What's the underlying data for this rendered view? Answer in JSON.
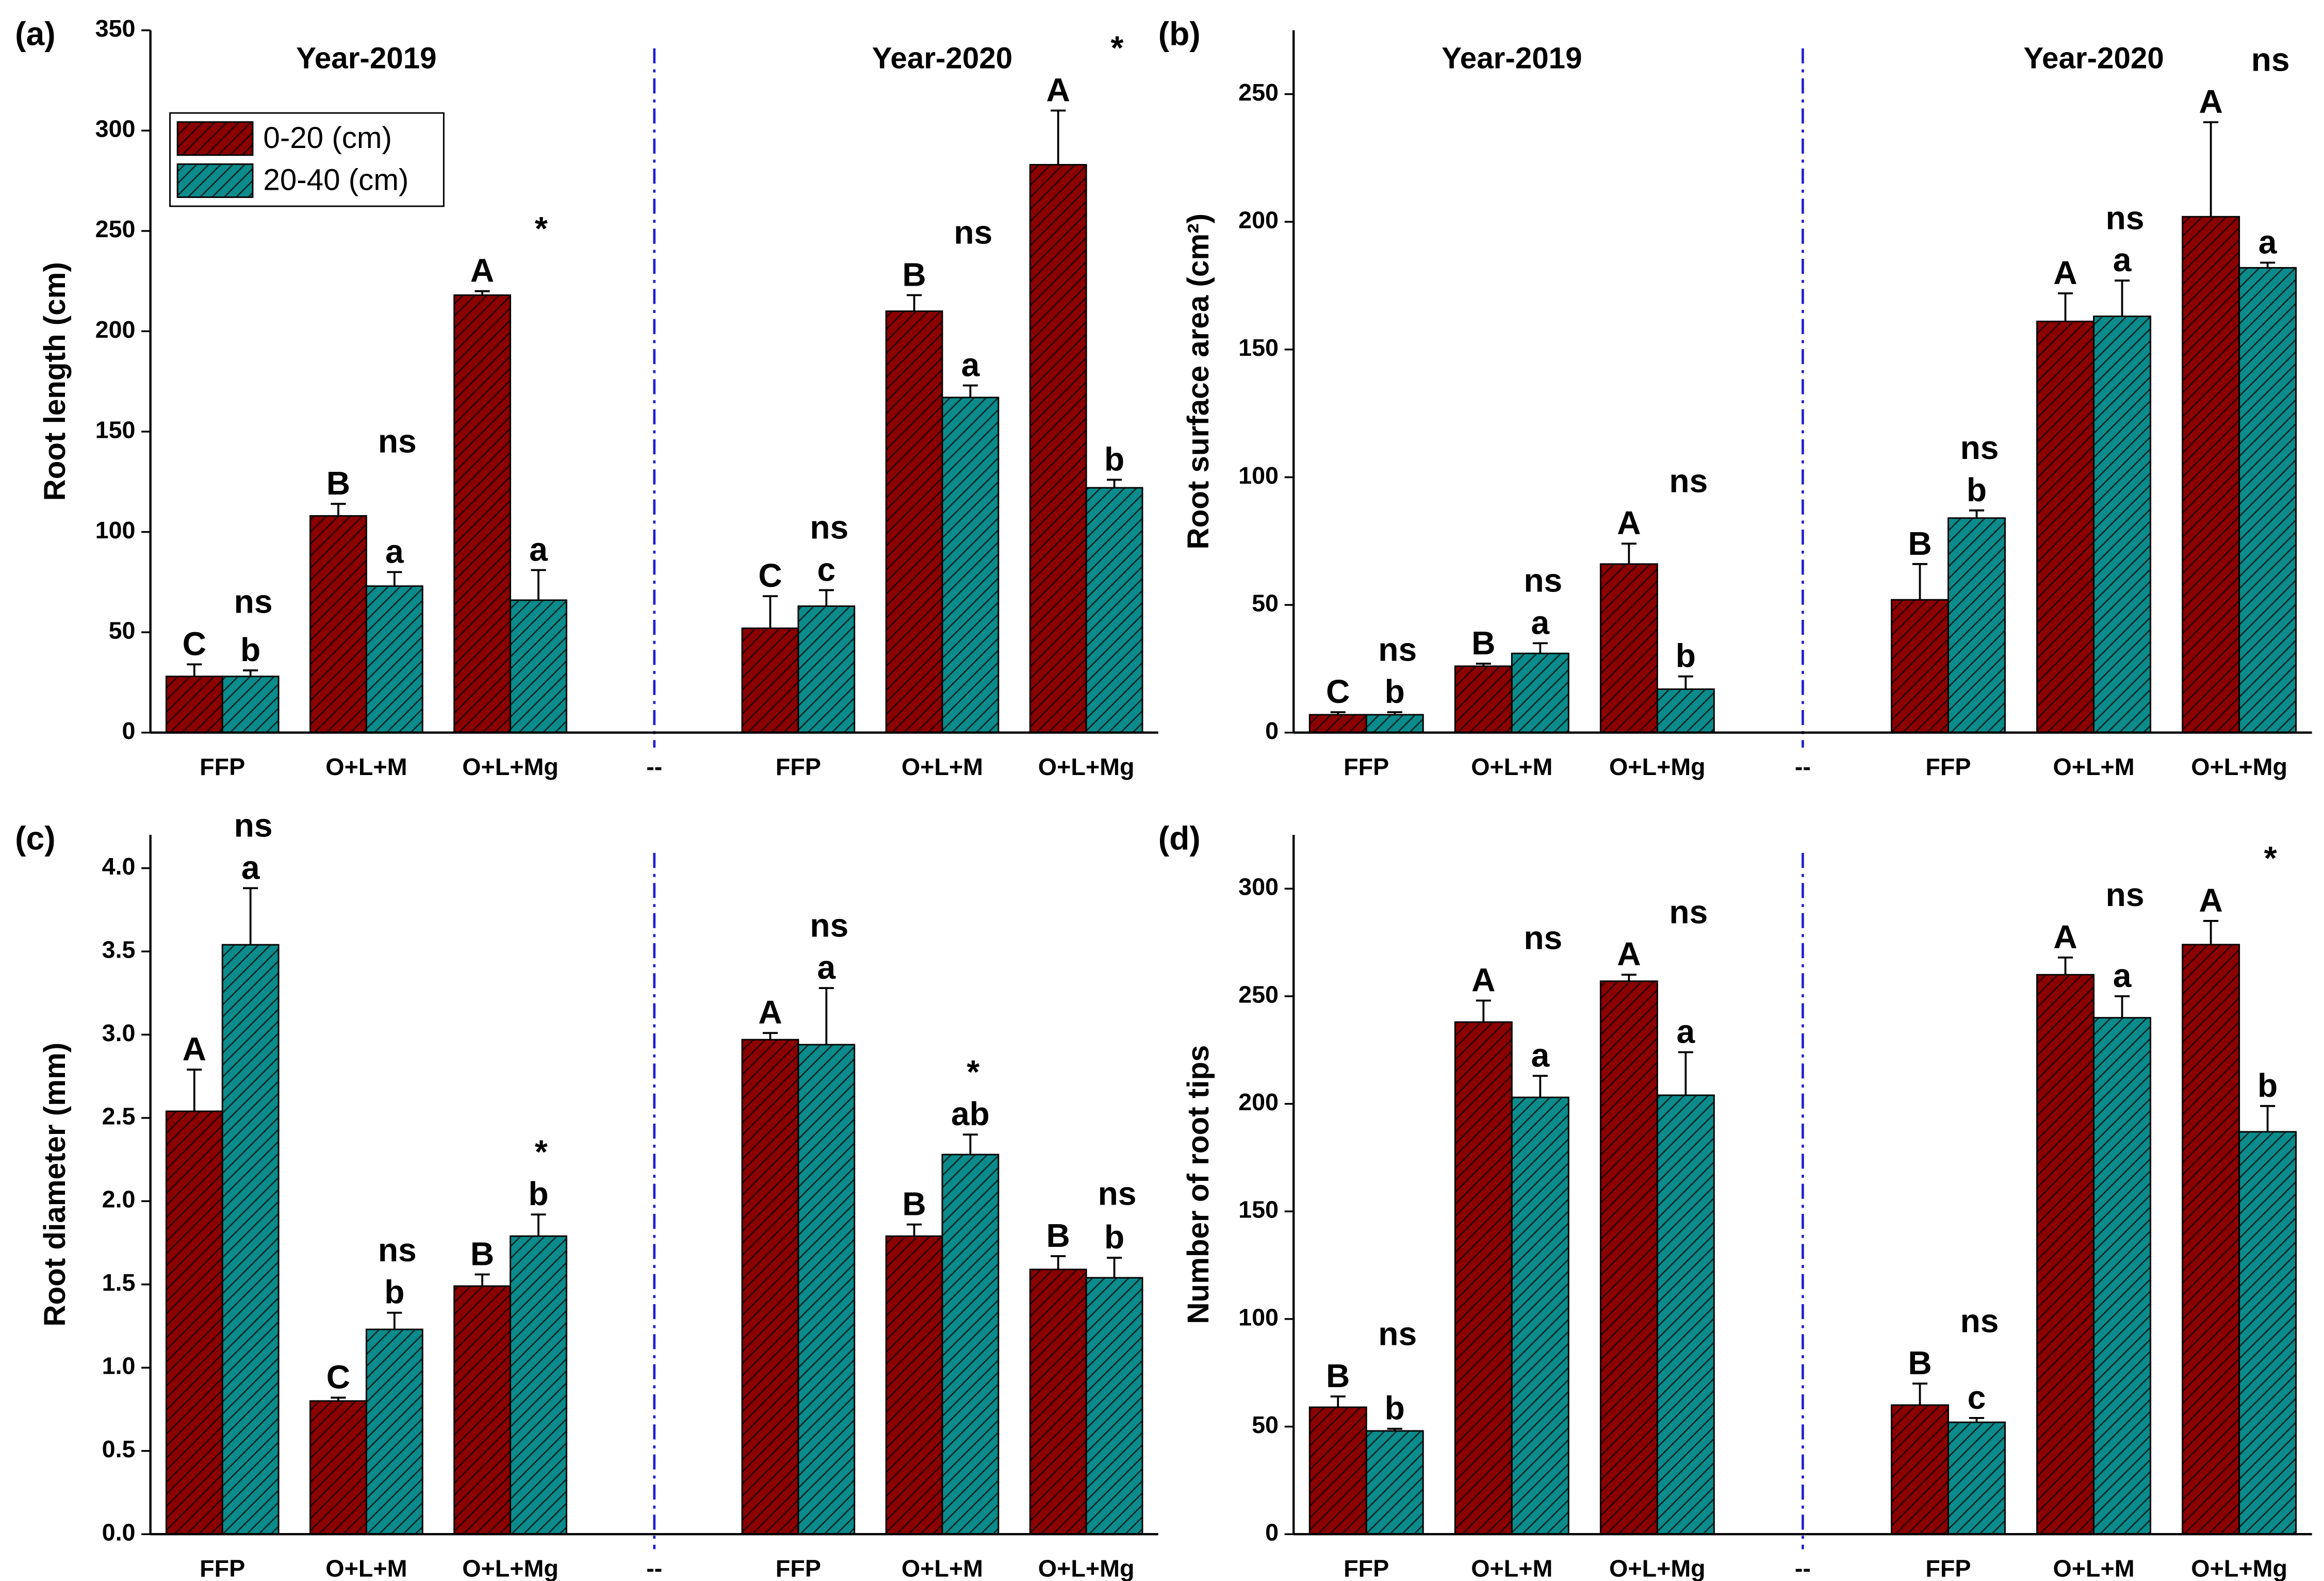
{
  "chart_data": [
    {
      "type": "bar",
      "panel_label": "(a)",
      "ylabel": "Root length (cm)",
      "annotations": [
        "Year-2019",
        "Year-2020"
      ],
      "categories": [
        "FFP",
        "O+L+M",
        "O+L+Mg",
        "--",
        "FFP",
        "O+L+M",
        "O+L+Mg"
      ],
      "series": [
        {
          "name": "0-20 (cm)",
          "color": "#8b0000",
          "values": [
            28,
            108,
            218,
            null,
            52,
            210,
            283
          ],
          "errors": [
            6,
            6,
            2,
            null,
            16,
            8,
            27
          ],
          "letters": [
            "C",
            "B",
            "A",
            null,
            "C",
            "B",
            "A"
          ]
        },
        {
          "name": "20-40 (cm)",
          "color": "#0b8b8b",
          "values": [
            28,
            73,
            66,
            null,
            63,
            167,
            122
          ],
          "errors": [
            3,
            7,
            15,
            null,
            8,
            6,
            4
          ],
          "letters": [
            "b",
            "a",
            "a",
            null,
            "c",
            "a",
            "b"
          ]
        }
      ],
      "significance": [
        "ns",
        "ns",
        "*",
        null,
        "ns",
        "ns",
        "*"
      ],
      "ylim": [
        0,
        350
      ],
      "yticks": [
        0,
        50,
        100,
        150,
        200,
        250,
        300,
        350
      ],
      "legend": "upper left"
    },
    {
      "type": "bar",
      "panel_label": "(b)",
      "ylabel": "Root surface area (cm²)",
      "annotations": [
        "Year-2019",
        "Year-2020"
      ],
      "categories": [
        "FFP",
        "O+L+M",
        "O+L+Mg",
        "--",
        "FFP",
        "O+L+M",
        "O+L+Mg"
      ],
      "series": [
        {
          "color": "#8b0000",
          "values": [
            7,
            26,
            66,
            null,
            52,
            161,
            202
          ],
          "errors": [
            1,
            1,
            8,
            null,
            14,
            11,
            37
          ],
          "letters": [
            "C",
            "B",
            "A",
            null,
            "B",
            "A",
            "A"
          ]
        },
        {
          "color": "#0b8b8b",
          "values": [
            7,
            31,
            17,
            null,
            84,
            163,
            182
          ],
          "errors": [
            1,
            4,
            5,
            null,
            3,
            14,
            2
          ],
          "letters": [
            "b",
            "a",
            "b",
            null,
            "b",
            "a",
            "a"
          ]
        }
      ],
      "significance": [
        "ns",
        "ns",
        "ns",
        null,
        "ns",
        "ns",
        "ns"
      ],
      "ylim": [
        0,
        275
      ],
      "yticks": [
        0,
        50,
        100,
        150,
        200,
        250
      ]
    },
    {
      "type": "bar",
      "panel_label": "(c)",
      "ylabel": "Root diameter (mm)",
      "categories": [
        "FFP",
        "O+L+M",
        "O+L+Mg",
        "--",
        "FFP",
        "O+L+M",
        "O+L+Mg"
      ],
      "series": [
        {
          "color": "#8b0000",
          "values": [
            2.54,
            0.8,
            1.49,
            null,
            2.97,
            1.79,
            1.59
          ],
          "errors": [
            0.25,
            0.02,
            0.07,
            null,
            0.04,
            0.07,
            0.08
          ],
          "letters": [
            "A",
            "C",
            "B",
            null,
            "A",
            "B",
            "B"
          ]
        },
        {
          "color": "#0b8b8b",
          "values": [
            3.54,
            1.23,
            1.79,
            null,
            2.94,
            2.28,
            1.54
          ],
          "errors": [
            0.34,
            0.1,
            0.13,
            null,
            0.34,
            0.12,
            0.12
          ],
          "letters": [
            "a",
            "b",
            "b",
            null,
            "a",
            "ab",
            "b"
          ]
        }
      ],
      "significance": [
        "ns",
        "ns",
        "*",
        null,
        "ns",
        "*",
        "ns"
      ],
      "ylim": [
        0,
        4.2
      ],
      "yticks": [
        {
          "value": 0,
          "label": "0.0"
        },
        0.5,
        {
          "value": 1,
          "label": "1.0"
        },
        1.5,
        {
          "value": 2,
          "label": "2.0"
        },
        2.5,
        {
          "value": 3,
          "label": "3.0"
        },
        3.5,
        {
          "value": 4,
          "label": "4.0"
        }
      ]
    },
    {
      "type": "bar",
      "panel_label": "(d)",
      "ylabel": "Number of root tips",
      "categories": [
        "FFP",
        "O+L+M",
        "O+L+Mg",
        "--",
        "FFP",
        "O+L+M",
        "O+L+Mg"
      ],
      "series": [
        {
          "color": "#8b0000",
          "values": [
            59,
            238,
            257,
            null,
            60,
            260,
            274
          ],
          "errors": [
            5,
            10,
            3,
            null,
            10,
            8,
            11
          ],
          "letters": [
            "B",
            "A",
            "A",
            null,
            "B",
            "A",
            "A"
          ]
        },
        {
          "color": "#0b8b8b",
          "values": [
            48,
            203,
            204,
            null,
            52,
            240,
            187
          ],
          "errors": [
            1,
            10,
            20,
            null,
            2,
            10,
            12
          ],
          "letters": [
            "b",
            "a",
            "a",
            null,
            "c",
            "a",
            "b"
          ]
        }
      ],
      "significance": [
        "ns",
        "ns",
        "ns",
        null,
        "ns",
        "ns",
        "*"
      ],
      "ylim": [
        0,
        325
      ],
      "yticks": [
        0,
        50,
        100,
        150,
        200,
        250,
        300
      ]
    }
  ]
}
